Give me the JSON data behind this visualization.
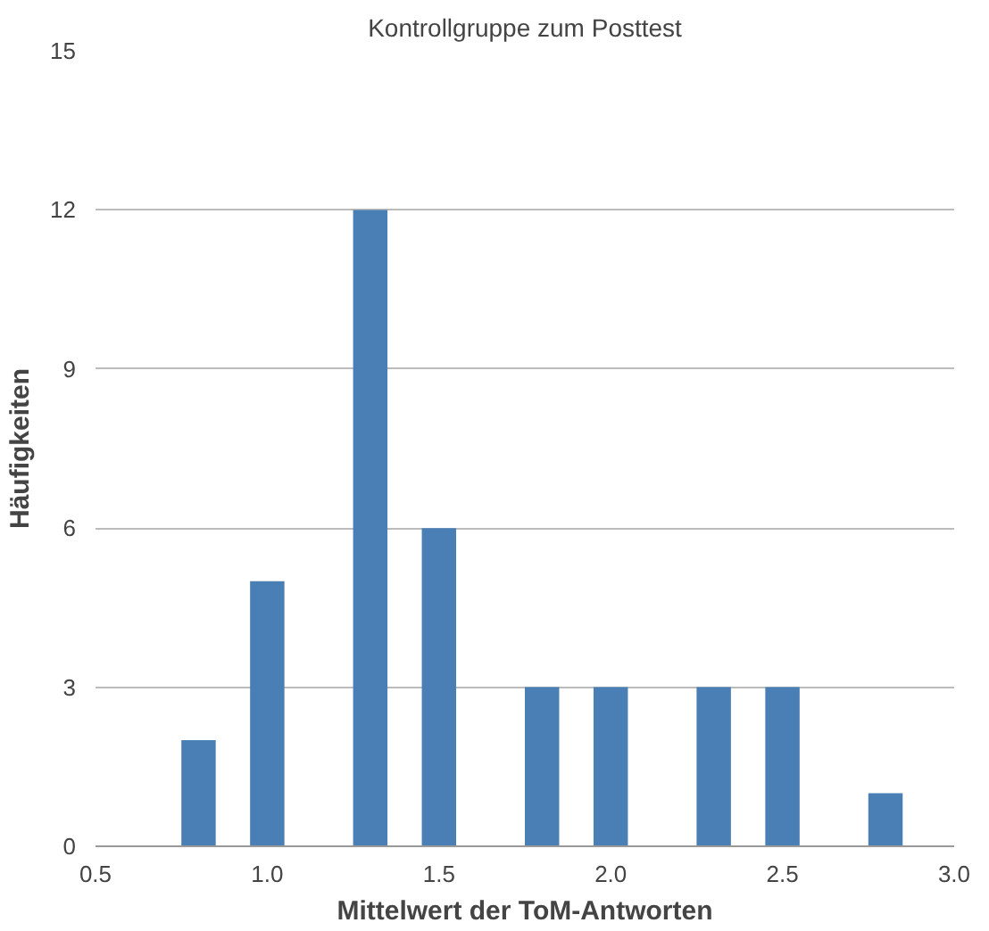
{
  "chart_data": {
    "type": "bar",
    "title": "Kontrollgruppe zum Posttest",
    "xlabel": "Mittelwert der ToM-Antworten",
    "ylabel": "Häufigkeiten",
    "x": [
      0.8,
      1.0,
      1.3,
      1.5,
      1.8,
      2.0,
      2.3,
      2.5,
      2.8
    ],
    "values": [
      2,
      5,
      12,
      6,
      3,
      3,
      3,
      3,
      1
    ],
    "color": "#4a7fb5",
    "xlim": [
      0.5,
      3.0
    ],
    "xticks": [
      {
        "value": 0.5,
        "label": "0.5"
      },
      {
        "value": 1.0,
        "label": "1.0"
      },
      {
        "value": 1.5,
        "label": "1.5"
      },
      {
        "value": 2.0,
        "label": "2.0"
      },
      {
        "value": 2.5,
        "label": "2.5"
      },
      {
        "value": 3.0,
        "label": "3.0"
      }
    ],
    "ylim": [
      0,
      15
    ],
    "yticks": [
      0,
      3,
      6,
      9,
      12,
      15
    ],
    "grid": "y"
  }
}
